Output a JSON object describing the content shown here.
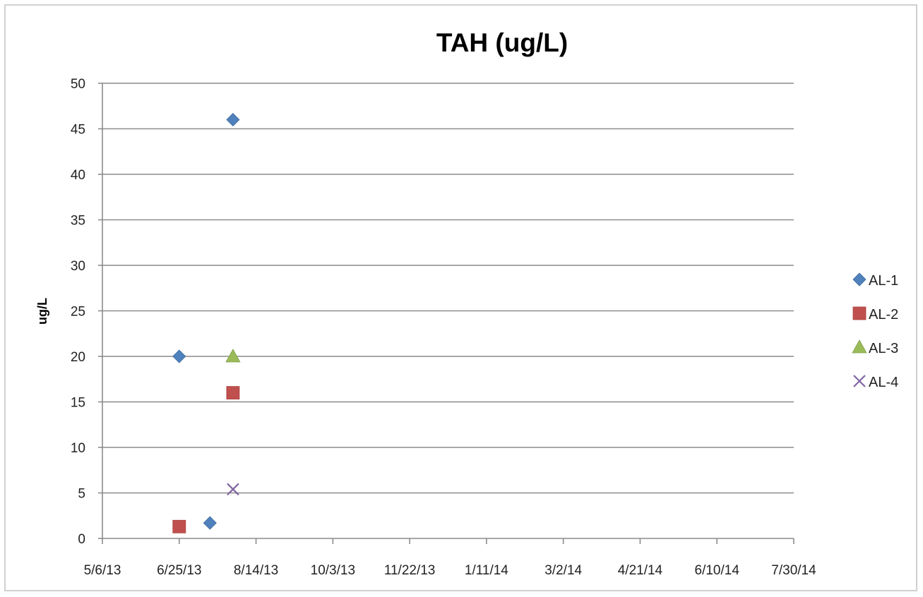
{
  "chart_data": {
    "type": "scatter",
    "title": "TAH (ug/L)",
    "xlabel": "",
    "ylabel": "ug/L",
    "x_tick_labels": [
      "5/6/13",
      "6/25/13",
      "8/14/13",
      "10/3/13",
      "11/22/13",
      "1/11/14",
      "3/2/14",
      "4/21/14",
      "6/10/14",
      "7/30/14"
    ],
    "x_ticks": [
      "2013-05-06",
      "2013-06-25",
      "2013-08-14",
      "2013-10-03",
      "2013-11-22",
      "2014-01-11",
      "2014-03-02",
      "2014-04-21",
      "2014-06-10",
      "2014-07-30"
    ],
    "xlim": [
      "2013-05-06",
      "2014-07-30"
    ],
    "y_ticks": [
      0,
      5,
      10,
      15,
      20,
      25,
      30,
      35,
      40,
      45,
      50
    ],
    "ylim": [
      0,
      50
    ],
    "grid": "horizontal",
    "legend_position": "right",
    "series": [
      {
        "name": "AL-1",
        "marker": "diamond",
        "color": "#4f81bd",
        "points": [
          {
            "x": "2013-06-25",
            "y": 20
          },
          {
            "x": "2013-07-15",
            "y": 1.7
          },
          {
            "x": "2013-07-30",
            "y": 46
          }
        ]
      },
      {
        "name": "AL-2",
        "marker": "square",
        "color": "#c0504d",
        "points": [
          {
            "x": "2013-06-25",
            "y": 1.3
          },
          {
            "x": "2013-07-30",
            "y": 16
          }
        ]
      },
      {
        "name": "AL-3",
        "marker": "triangle",
        "color": "#9bbb59",
        "points": [
          {
            "x": "2013-07-30",
            "y": 20
          }
        ]
      },
      {
        "name": "AL-4",
        "marker": "x",
        "color": "#8064a2",
        "points": [
          {
            "x": "2013-07-30",
            "y": 5.4
          }
        ]
      }
    ]
  }
}
